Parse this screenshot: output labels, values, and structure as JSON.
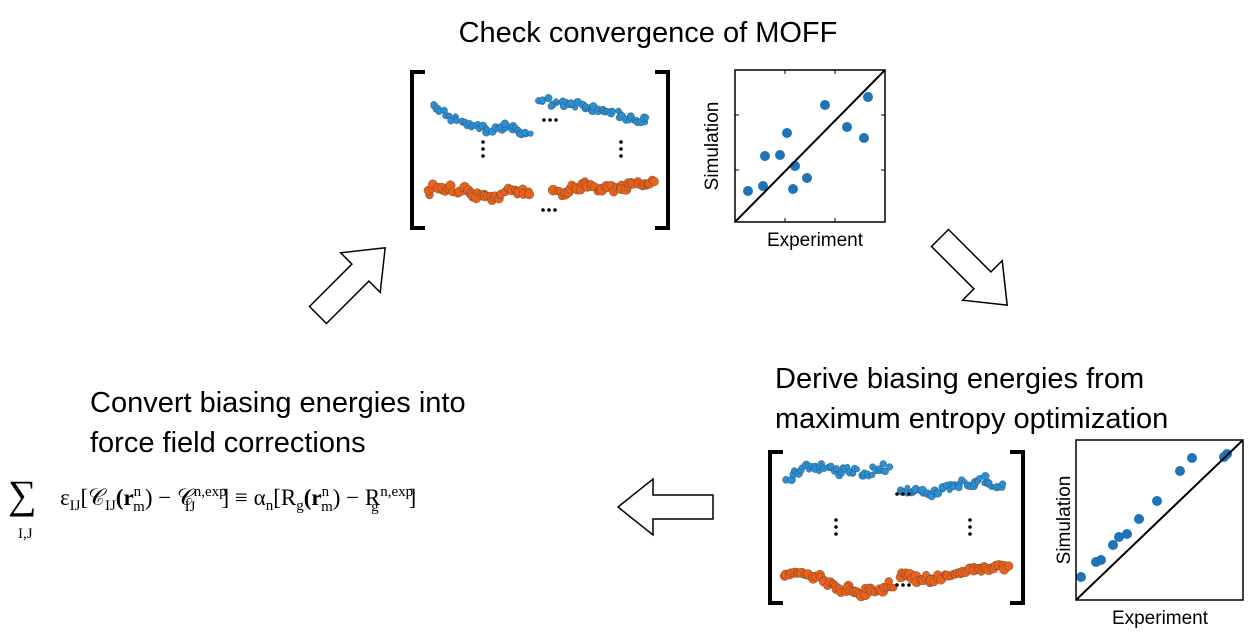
{
  "top": {
    "title": "Check convergence of MOFF",
    "y_label": "Simulation",
    "x_label": "Experiment"
  },
  "right": {
    "title_line1": "Derive biasing energies from",
    "title_line2": "maximum entropy optimization",
    "y_label": "Simulation",
    "x_label": "Experiment"
  },
  "left": {
    "title_line1": "Convert biasing energies into",
    "title_line2": "force field corrections"
  },
  "equation": {
    "sum": "∑",
    "sum_sub": "I,J",
    "parts": [
      "ε",
      "IJ",
      "[𝒞",
      "IJ",
      "(r",
      "n",
      "m",
      ") − 𝒞",
      "n,exp",
      "IJ",
      "] ≡ α",
      "n",
      "[R",
      "g",
      "(r",
      "n",
      "m",
      ") − R",
      "n,exp",
      "g",
      "]"
    ]
  }
}
